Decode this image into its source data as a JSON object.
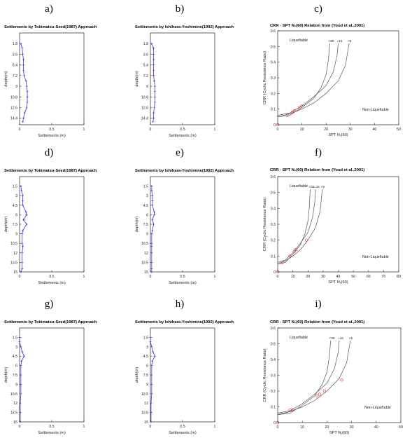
{
  "figure": {
    "letters": [
      "a)",
      "b)",
      "c)",
      "d)",
      "e)",
      "f)",
      "g)",
      "h)",
      "i)"
    ]
  },
  "chart_data": [
    {
      "type": "line",
      "letter": "a)",
      "title": "Settlements by Tokimatsu-Seed(1987) Approach",
      "xlabel": "Settlements (m)",
      "ylabel": "depth(m)",
      "xlim": [
        0,
        1
      ],
      "ylim": [
        15.5,
        0
      ],
      "y_reversed": true,
      "x_ticks": [
        "0",
        "0.5",
        "1"
      ],
      "y_ticks": [
        "1.8",
        "3.6",
        "5.4",
        "7.2",
        "9",
        "10.8",
        "12.6",
        "14.4"
      ],
      "y_tick_values": [
        1.8,
        3.6,
        5.4,
        7.2,
        9,
        10.8,
        12.6,
        14.4
      ],
      "series": [
        {
          "color": "#3b3bd0",
          "points": [
            [
              0.02,
              1.8
            ],
            [
              0.04,
              2.5
            ],
            [
              0.05,
              3.6
            ],
            [
              0.06,
              4.5
            ],
            [
              0.06,
              5.4
            ],
            [
              0.06,
              6.3
            ],
            [
              0.07,
              7.2
            ],
            [
              0.1,
              8.1
            ],
            [
              0.11,
              9.0
            ],
            [
              0.12,
              9.9
            ],
            [
              0.12,
              10.8
            ],
            [
              0.12,
              11.7
            ],
            [
              0.11,
              12.6
            ],
            [
              0.08,
              13.5
            ],
            [
              0.06,
              14.4
            ],
            [
              0.05,
              15.0
            ]
          ]
        }
      ]
    },
    {
      "type": "line",
      "letter": "b)",
      "title": "Settlements by Ishihara-Yoshimine(1992) Approach",
      "xlabel": "Settlements (m)",
      "ylabel": "depth(m)",
      "xlim": [
        0,
        1
      ],
      "ylim": [
        15.5,
        0
      ],
      "y_reversed": true,
      "x_ticks": [
        "0",
        "0.5",
        "1"
      ],
      "y_ticks": [
        "1.8",
        "3.6",
        "5.4",
        "7.2",
        "9",
        "10.8",
        "12.6",
        "14.4"
      ],
      "y_tick_values": [
        1.8,
        3.6,
        5.4,
        7.2,
        9,
        10.8,
        12.6,
        14.4
      ],
      "series": [
        {
          "color": "#3b3bd0",
          "points": [
            [
              0.02,
              1.8
            ],
            [
              0.05,
              2.6
            ],
            [
              0.05,
              3.6
            ],
            [
              0.05,
              4.5
            ],
            [
              0.05,
              5.4
            ],
            [
              0.05,
              6.3
            ],
            [
              0.05,
              7.2
            ],
            [
              0.06,
              8.1
            ],
            [
              0.07,
              9.0
            ],
            [
              0.07,
              9.9
            ],
            [
              0.07,
              10.8
            ],
            [
              0.07,
              11.7
            ],
            [
              0.06,
              12.6
            ],
            [
              0.05,
              13.5
            ],
            [
              0.05,
              14.4
            ],
            [
              0.04,
              15.0
            ]
          ]
        }
      ]
    },
    {
      "type": "scatter",
      "letter": "c)",
      "title": "CRR - SPT N₁(60) Relation from (Youd et al.,2001)",
      "xlabel": "SPT N₁(60)",
      "ylabel": "CRR (Cyclic Resistance Ratio)",
      "xlim": [
        0,
        50
      ],
      "ylim": [
        0,
        0.6
      ],
      "x_ticks": [
        "0",
        "10",
        "20",
        "30",
        "40",
        "50"
      ],
      "y_ticks": [
        "0",
        "0.1",
        "0.2",
        "0.3",
        "0.4",
        "0.5",
        "0.6"
      ],
      "annotations": {
        "upper": "Liquefiable",
        "lower": "Non-Liquefiable"
      },
      "curves": [
        {
          "label": "<35",
          "points": [
            [
              0,
              0.05
            ],
            [
              5,
              0.06
            ],
            [
              10,
              0.11
            ],
            [
              15,
              0.17
            ],
            [
              18,
              0.24
            ],
            [
              20,
              0.32
            ],
            [
              21,
              0.42
            ],
            [
              21.5,
              0.52
            ]
          ]
        },
        {
          "label": "=15",
          "points": [
            [
              0,
              0.06
            ],
            [
              5,
              0.075
            ],
            [
              10,
              0.12
            ],
            [
              15,
              0.18
            ],
            [
              20,
              0.25
            ],
            [
              23,
              0.34
            ],
            [
              24.5,
              0.44
            ],
            [
              25,
              0.52
            ]
          ]
        },
        {
          "label": "<5",
          "points": [
            [
              0,
              0.05
            ],
            [
              5,
              0.07
            ],
            [
              10,
              0.1
            ],
            [
              15,
              0.14
            ],
            [
              20,
              0.2
            ],
            [
              25,
              0.28
            ],
            [
              28,
              0.38
            ],
            [
              29.5,
              0.52
            ]
          ]
        }
      ],
      "points_color": "#e03030",
      "points": [
        [
          0,
          0
        ],
        [
          4,
          0.06
        ],
        [
          6,
          0.08
        ],
        [
          7,
          0.09
        ],
        [
          9,
          0.11
        ],
        [
          10,
          0.12
        ]
      ]
    },
    {
      "type": "line",
      "letter": "d)",
      "title": "Settlements by Tokimatsu-Seed(1987) Approach",
      "xlabel": "Settlements (m)",
      "ylabel": "depth(m)",
      "xlim": [
        0,
        1
      ],
      "ylim": [
        15,
        0
      ],
      "y_reversed": true,
      "x_ticks": [
        "0",
        "0.5",
        "1"
      ],
      "y_ticks": [
        "1.5",
        "3",
        "4.5",
        "6",
        "7.5",
        "9",
        "10.5",
        "12",
        "13.5",
        "15"
      ],
      "y_tick_values": [
        1.5,
        3,
        4.5,
        6,
        7.5,
        9,
        10.5,
        12,
        13.5,
        15
      ],
      "series": [
        {
          "color": "#3b3bd0",
          "points": [
            [
              0.02,
              1.5
            ],
            [
              0.03,
              2.2
            ],
            [
              0.05,
              3.0
            ],
            [
              0.05,
              3.8
            ],
            [
              0.05,
              4.5
            ],
            [
              0.1,
              5.6
            ],
            [
              0.11,
              6.0
            ],
            [
              0.06,
              6.8
            ],
            [
              0.11,
              7.5
            ],
            [
              0.05,
              8.5
            ],
            [
              0.04,
              9.0
            ],
            [
              0.04,
              10.5
            ],
            [
              0.05,
              11.0
            ],
            [
              0.04,
              12.0
            ],
            [
              0.04,
              13.5
            ],
            [
              0.04,
              14.5
            ],
            [
              0.02,
              15.0
            ]
          ]
        }
      ]
    },
    {
      "type": "line",
      "letter": "e)",
      "title": "Settlements by Ishihara-Yoshimine(1992) Approach",
      "xlabel": "Settlements (m)",
      "ylabel": "depth(m)",
      "xlim": [
        0,
        1
      ],
      "ylim": [
        15,
        0
      ],
      "y_reversed": true,
      "x_ticks": [
        "0",
        "0.5",
        "1"
      ],
      "y_ticks": [
        "1.5",
        "3",
        "4.5",
        "6",
        "7.5",
        "9",
        "10.5",
        "12",
        "13.5",
        "15"
      ],
      "y_tick_values": [
        1.5,
        3,
        4.5,
        6,
        7.5,
        9,
        10.5,
        12,
        13.5,
        15
      ],
      "series": [
        {
          "color": "#3b3bd0",
          "points": [
            [
              0.02,
              1.5
            ],
            [
              0.02,
              2.2
            ],
            [
              0.03,
              3.0
            ],
            [
              0.03,
              3.8
            ],
            [
              0.03,
              4.5
            ],
            [
              0.06,
              5.6
            ],
            [
              0.06,
              6.0
            ],
            [
              0.03,
              6.8
            ],
            [
              0.05,
              7.5
            ],
            [
              0.03,
              8.5
            ],
            [
              0.02,
              9.0
            ],
            [
              0.02,
              10.5
            ],
            [
              0.02,
              11.0
            ],
            [
              0.02,
              12.0
            ],
            [
              0.02,
              13.5
            ],
            [
              0.02,
              14.5
            ],
            [
              0.02,
              15.0
            ]
          ]
        }
      ]
    },
    {
      "type": "scatter",
      "letter": "f)",
      "title": "CRR - SPT N₁(60) Relation from (Youd et al.,2001)",
      "xlabel": "SPT N₁(60)",
      "ylabel": "CRR (Cyclic Resistance Ratio)",
      "xlim": [
        0,
        80
      ],
      "ylim": [
        0,
        0.6
      ],
      "x_ticks": [
        "0",
        "10",
        "20",
        "30",
        "40",
        "50",
        "60",
        "70",
        "80"
      ],
      "y_ticks": [
        "0",
        "0.1",
        "0.2",
        "0.3",
        "0.4",
        "0.5",
        "0.6"
      ],
      "annotations": {
        "upper": "Liquefiable",
        "lower": "Non-Liquefiable"
      },
      "curves": [
        {
          "label": "<35",
          "points": [
            [
              0,
              0.05
            ],
            [
              5,
              0.06
            ],
            [
              10,
              0.11
            ],
            [
              15,
              0.17
            ],
            [
              18,
              0.24
            ],
            [
              20,
              0.32
            ],
            [
              21,
              0.42
            ],
            [
              21.5,
              0.52
            ]
          ]
        },
        {
          "label": "=15",
          "points": [
            [
              0,
              0.06
            ],
            [
              5,
              0.075
            ],
            [
              10,
              0.12
            ],
            [
              15,
              0.18
            ],
            [
              20,
              0.25
            ],
            [
              23,
              0.34
            ],
            [
              24.5,
              0.44
            ],
            [
              25,
              0.52
            ]
          ]
        },
        {
          "label": "<5",
          "points": [
            [
              0,
              0.05
            ],
            [
              5,
              0.07
            ],
            [
              10,
              0.1
            ],
            [
              15,
              0.14
            ],
            [
              20,
              0.2
            ],
            [
              25,
              0.28
            ],
            [
              28,
              0.38
            ],
            [
              29.5,
              0.52
            ]
          ]
        }
      ],
      "points_color": "#e03030",
      "points": [
        [
          0,
          0
        ],
        [
          3,
          0.06
        ],
        [
          8,
          0.1
        ],
        [
          11,
          0.13
        ],
        [
          12,
          0.14
        ],
        [
          19,
          0.2
        ]
      ]
    },
    {
      "type": "line",
      "letter": "g)",
      "title": "Settlements by Tokimatsu-Seed(1987) Approach",
      "xlabel": "Settlements (m)",
      "ylabel": "depth(m)",
      "xlim": [
        0,
        1
      ],
      "ylim": [
        15,
        0
      ],
      "y_reversed": true,
      "x_ticks": [
        "0",
        "0.5",
        "1"
      ],
      "y_ticks": [
        "1.5",
        "3",
        "4.5",
        "6",
        "7.5",
        "9",
        "10.5",
        "12",
        "13.5",
        "15"
      ],
      "y_tick_values": [
        1.5,
        3,
        4.5,
        6,
        7.5,
        9,
        10.5,
        12,
        13.5,
        15
      ],
      "series": [
        {
          "color": "#3b3bd0",
          "points": [
            [
              0.0,
              1.5
            ],
            [
              0.0,
              2.2
            ],
            [
              0.02,
              3.0
            ],
            [
              0.04,
              3.8
            ],
            [
              0.07,
              4.5
            ],
            [
              0.03,
              5.3
            ],
            [
              0.02,
              6.0
            ],
            [
              0.02,
              7.5
            ],
            [
              0.02,
              9.0
            ],
            [
              0.02,
              10.5
            ],
            [
              0.01,
              12.0
            ],
            [
              0.01,
              13.5
            ],
            [
              0.01,
              15.0
            ]
          ]
        }
      ]
    },
    {
      "type": "line",
      "letter": "h)",
      "title": "Settlements by Ishihara-Yoshimine(1992) Approach",
      "xlabel": "Settlements (m)",
      "ylabel": "depth(m)",
      "xlim": [
        0,
        1
      ],
      "ylim": [
        15,
        0
      ],
      "y_reversed": true,
      "x_ticks": [
        "0",
        "0.5",
        "1"
      ],
      "y_ticks": [
        "1.5",
        "3",
        "4.5",
        "6",
        "7.5",
        "9",
        "10.5",
        "12",
        "13.5",
        "15"
      ],
      "y_tick_values": [
        1.5,
        3,
        4.5,
        6,
        7.5,
        9,
        10.5,
        12,
        13.5,
        15
      ],
      "series": [
        {
          "color": "#3b3bd0",
          "points": [
            [
              0.0,
              1.5
            ],
            [
              0.0,
              2.2
            ],
            [
              0.02,
              3.0
            ],
            [
              0.04,
              3.8
            ],
            [
              0.07,
              4.5
            ],
            [
              0.03,
              5.3
            ],
            [
              0.02,
              6.0
            ],
            [
              0.02,
              7.5
            ],
            [
              0.02,
              9.0
            ],
            [
              0.02,
              10.5
            ],
            [
              0.01,
              12.0
            ],
            [
              0.01,
              13.5
            ],
            [
              0.01,
              15.0
            ]
          ]
        }
      ]
    },
    {
      "type": "scatter",
      "letter": "i)",
      "title": "CRR - SPT N₁(60) Relation from (Youd et al.,2001)",
      "xlabel": "SPT N₁(60)",
      "ylabel": "CRR (Cyclic Resistance Ratio)",
      "xlim": [
        0,
        50
      ],
      "ylim": [
        0,
        0.6
      ],
      "x_ticks": [
        "0",
        "10",
        "20",
        "30",
        "40",
        "50"
      ],
      "y_ticks": [
        "0",
        "0.1",
        "0.2",
        "0.3",
        "0.4",
        "0.5",
        "0.6"
      ],
      "annotations": {
        "upper": "Liquefiable",
        "lower": "Non-Liquefiable"
      },
      "curves": [
        {
          "label": "<35",
          "points": [
            [
              0,
              0.05
            ],
            [
              5,
              0.06
            ],
            [
              10,
              0.11
            ],
            [
              15,
              0.17
            ],
            [
              18,
              0.24
            ],
            [
              20,
              0.32
            ],
            [
              21,
              0.42
            ],
            [
              21.5,
              0.52
            ]
          ]
        },
        {
          "label": "=15",
          "points": [
            [
              0,
              0.06
            ],
            [
              5,
              0.075
            ],
            [
              10,
              0.12
            ],
            [
              15,
              0.18
            ],
            [
              20,
              0.25
            ],
            [
              23,
              0.34
            ],
            [
              24.5,
              0.44
            ],
            [
              25,
              0.52
            ]
          ]
        },
        {
          "label": "<5",
          "points": [
            [
              0,
              0.05
            ],
            [
              5,
              0.07
            ],
            [
              10,
              0.1
            ],
            [
              15,
              0.14
            ],
            [
              20,
              0.2
            ],
            [
              25,
              0.28
            ],
            [
              28,
              0.38
            ],
            [
              29.5,
              0.52
            ]
          ]
        }
      ],
      "points_color": "#e03030",
      "points": [
        [
          0,
          0
        ],
        [
          5,
          0.08
        ],
        [
          6,
          0.08
        ],
        [
          16,
          0.17
        ],
        [
          17,
          0.18
        ],
        [
          19,
          0.2
        ],
        [
          26,
          0.27
        ]
      ]
    }
  ]
}
